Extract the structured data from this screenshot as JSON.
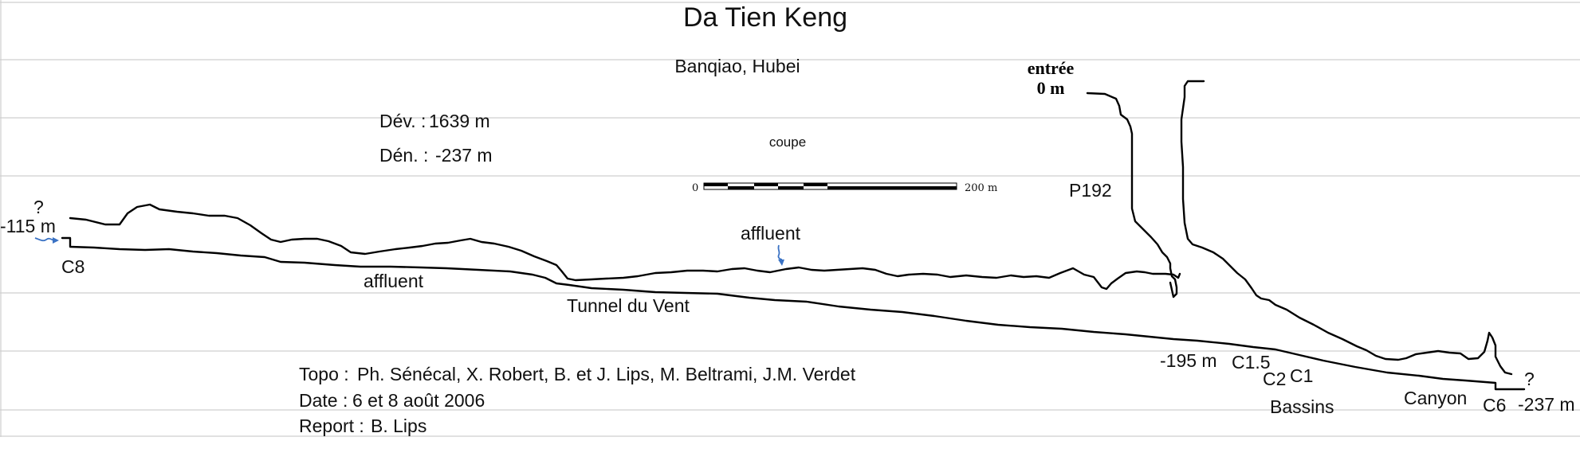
{
  "title": "Da Tien Keng",
  "location": "Banqiao, Hubei",
  "view": "coupe",
  "stats": {
    "dev_label": "Dév. :",
    "dev_value": "1639 m",
    "den_label": "Dén. :",
    "den_value": "-237 m"
  },
  "scale_bar": {
    "min_label": "0",
    "max_label": "200 m"
  },
  "entrance": {
    "label": "entrée",
    "depth": "0 m"
  },
  "labels": {
    "p192": "P192",
    "q_left": "?",
    "depth_left": "-115 m",
    "c8": "C8",
    "affluent_left": "affluent",
    "affluent_mid": "affluent",
    "tunnel": "Tunnel du Vent",
    "depth_195": "-195 m",
    "c15": "C1.5",
    "c2": "C2",
    "c1": "C1",
    "bassins": "Bassins",
    "canyon": "Canyon",
    "c6": "C6",
    "q_right": "?",
    "depth_237": "-237 m"
  },
  "credits": {
    "topo_label": "Topo :",
    "topo_value": "Ph. Sénécal, X. Robert, B. et J. Lips, M. Beltrami, J.M. Verdet",
    "date_label": "Date :",
    "date_value": "6 et 8 août 2006",
    "report_label": "Report :",
    "report_value": "B. Lips"
  }
}
